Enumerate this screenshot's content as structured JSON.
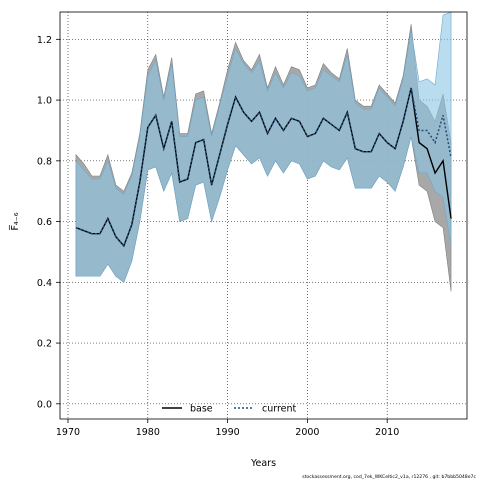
{
  "chart_data": {
    "type": "area",
    "xlabel": "Years",
    "ylabel": "F̅₄₋₆",
    "xlim": [
      1969,
      2020
    ],
    "ylim": [
      -0.05,
      1.29
    ],
    "x_ticks": [
      1970,
      1980,
      1990,
      2000,
      2010
    ],
    "y_ticks": [
      0.0,
      0.2,
      0.4,
      0.6,
      0.8,
      1.0,
      1.2
    ],
    "y_tick_labels": [
      "0.0",
      "0.2",
      "0.4",
      "0.6",
      "0.8",
      "1.0",
      "1.2"
    ],
    "grid": true,
    "legend": {
      "placement": "bottom-center"
    },
    "x": [
      1971,
      1972,
      1973,
      1974,
      1975,
      1976,
      1977,
      1978,
      1979,
      1980,
      1981,
      1982,
      1983,
      1984,
      1985,
      1986,
      1987,
      1988,
      1989,
      1990,
      1991,
      1992,
      1993,
      1994,
      1995,
      1996,
      1997,
      1998,
      1999,
      2000,
      2001,
      2002,
      2003,
      2004,
      2005,
      2006,
      2007,
      2008,
      2009,
      2010,
      2011,
      2012,
      2013,
      2014,
      2015,
      2016,
      2017,
      2018
    ],
    "series": [
      {
        "name": "base",
        "color": "#000000",
        "band_color": "#9e9e9e",
        "values": [
          0.58,
          0.57,
          0.56,
          0.56,
          0.61,
          0.55,
          0.52,
          0.59,
          0.73,
          0.91,
          0.95,
          0.84,
          0.93,
          0.73,
          0.74,
          0.86,
          0.87,
          0.72,
          0.82,
          0.92,
          1.01,
          0.96,
          0.93,
          0.96,
          0.89,
          0.94,
          0.9,
          0.94,
          0.93,
          0.88,
          0.89,
          0.94,
          0.92,
          0.9,
          0.96,
          0.84,
          0.83,
          0.83,
          0.89,
          0.86,
          0.84,
          0.93,
          1.04,
          0.86,
          0.84,
          0.76,
          0.8,
          0.61
        ],
        "lower": [
          0.42,
          0.42,
          0.42,
          0.42,
          0.46,
          0.42,
          0.4,
          0.47,
          0.6,
          0.77,
          0.78,
          0.7,
          0.76,
          0.6,
          0.61,
          0.72,
          0.73,
          0.6,
          0.68,
          0.77,
          0.85,
          0.82,
          0.79,
          0.81,
          0.75,
          0.8,
          0.76,
          0.8,
          0.79,
          0.74,
          0.75,
          0.8,
          0.78,
          0.77,
          0.81,
          0.71,
          0.71,
          0.71,
          0.75,
          0.73,
          0.7,
          0.78,
          0.88,
          0.72,
          0.7,
          0.6,
          0.58,
          0.37
        ],
        "upper": [
          0.82,
          0.79,
          0.75,
          0.75,
          0.82,
          0.72,
          0.7,
          0.76,
          0.89,
          1.1,
          1.15,
          1.01,
          1.14,
          0.89,
          0.89,
          1.02,
          1.03,
          0.89,
          0.99,
          1.1,
          1.19,
          1.13,
          1.1,
          1.15,
          1.04,
          1.11,
          1.05,
          1.11,
          1.1,
          1.04,
          1.05,
          1.12,
          1.09,
          1.07,
          1.17,
          1.0,
          0.98,
          0.98,
          1.05,
          1.02,
          0.99,
          1.08,
          1.25,
          1.0,
          0.98,
          0.93,
          1.02,
          0.86
        ]
      },
      {
        "name": "current",
        "color": "#1f4e79",
        "band_color": "#8cc4e4",
        "values": [
          0.58,
          0.57,
          0.56,
          0.56,
          0.61,
          0.55,
          0.52,
          0.59,
          0.73,
          0.91,
          0.95,
          0.84,
          0.93,
          0.73,
          0.74,
          0.86,
          0.87,
          0.72,
          0.82,
          0.92,
          1.01,
          0.96,
          0.93,
          0.96,
          0.89,
          0.94,
          0.9,
          0.94,
          0.93,
          0.88,
          0.89,
          0.94,
          0.92,
          0.9,
          0.96,
          0.84,
          0.83,
          0.83,
          0.89,
          0.86,
          0.84,
          0.93,
          1.04,
          0.9,
          0.9,
          0.86,
          0.95,
          0.81
        ],
        "lower": [
          0.42,
          0.42,
          0.42,
          0.42,
          0.46,
          0.42,
          0.4,
          0.47,
          0.6,
          0.77,
          0.78,
          0.7,
          0.76,
          0.6,
          0.61,
          0.72,
          0.73,
          0.6,
          0.68,
          0.77,
          0.85,
          0.82,
          0.79,
          0.81,
          0.75,
          0.8,
          0.76,
          0.8,
          0.79,
          0.74,
          0.75,
          0.8,
          0.78,
          0.77,
          0.81,
          0.71,
          0.71,
          0.71,
          0.75,
          0.73,
          0.7,
          0.78,
          0.88,
          0.76,
          0.76,
          0.7,
          0.68,
          0.52
        ],
        "upper": [
          0.8,
          0.77,
          0.74,
          0.74,
          0.8,
          0.71,
          0.69,
          0.75,
          0.88,
          1.08,
          1.13,
          1.0,
          1.12,
          0.88,
          0.88,
          1.0,
          1.01,
          0.88,
          0.98,
          1.08,
          1.17,
          1.12,
          1.09,
          1.13,
          1.03,
          1.09,
          1.04,
          1.09,
          1.08,
          1.03,
          1.04,
          1.1,
          1.08,
          1.06,
          1.15,
          0.99,
          0.97,
          0.97,
          1.04,
          1.01,
          0.98,
          1.07,
          1.23,
          1.06,
          1.07,
          1.05,
          1.28,
          1.29
        ]
      }
    ]
  },
  "legend": {
    "items": [
      {
        "label": "base",
        "color": "#000000",
        "style": "solid"
      },
      {
        "label": "current",
        "color": "#1f4e79",
        "style": "dotted"
      }
    ]
  },
  "footer": {
    "credit": "stockassessment.org, cod_7ek_WKCeltic2_v1a, r12276 , git: b7bbb5048e7c"
  }
}
